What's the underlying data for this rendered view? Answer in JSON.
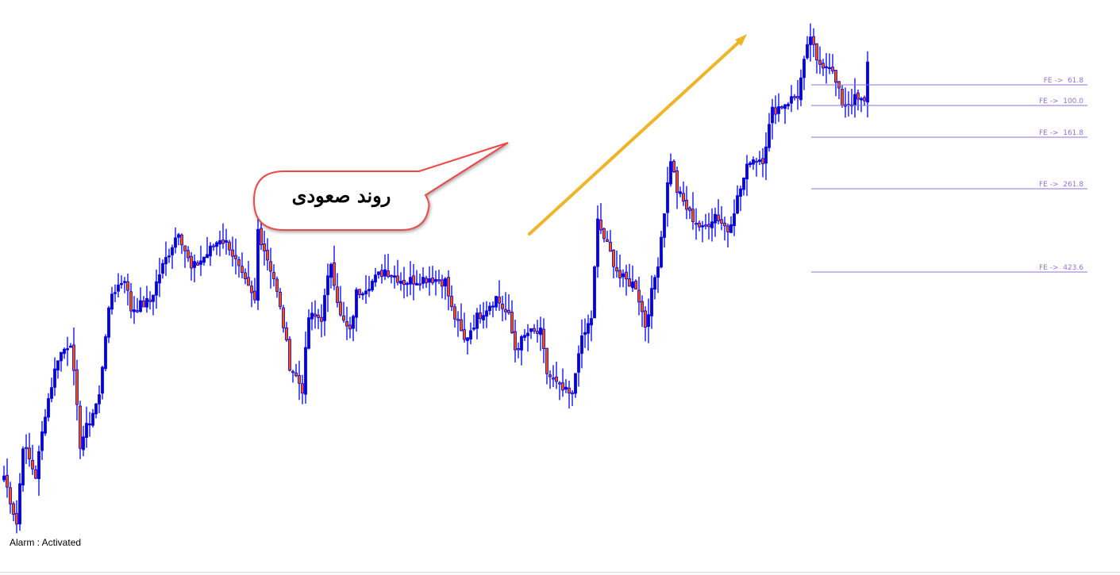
{
  "chart_data": {
    "type": "candlestick",
    "title": "",
    "xlabel": "",
    "ylabel": "",
    "grid": false,
    "colors": {
      "bull_fill": "#0000ee",
      "bear_fill": "#ff4a1a",
      "outline": "#0000ee",
      "fib_line": "#9370db",
      "arrow": "#f0b429",
      "callout_border": "#f04848"
    },
    "close_trend": [
      [
        0,
        100
      ],
      [
        4,
        40
      ],
      [
        6,
        140
      ],
      [
        10,
        100
      ],
      [
        13,
        180
      ],
      [
        17,
        250
      ],
      [
        21,
        270
      ],
      [
        24,
        140
      ],
      [
        26,
        160
      ],
      [
        30,
        200
      ],
      [
        32,
        280
      ],
      [
        34,
        330
      ],
      [
        38,
        350
      ],
      [
        40,
        310
      ],
      [
        46,
        320
      ],
      [
        49,
        355
      ],
      [
        55,
        410
      ],
      [
        59,
        360
      ],
      [
        64,
        380
      ],
      [
        68,
        400
      ],
      [
        71,
        390
      ],
      [
        75,
        350
      ],
      [
        79,
        320
      ],
      [
        80,
        410
      ],
      [
        85,
        350
      ],
      [
        88,
        290
      ],
      [
        90,
        240
      ],
      [
        94,
        210
      ],
      [
        96,
        300
      ],
      [
        100,
        300
      ],
      [
        103,
        370
      ],
      [
        106,
        300
      ],
      [
        109,
        280
      ],
      [
        111,
        330
      ],
      [
        116,
        345
      ],
      [
        120,
        360
      ],
      [
        126,
        345
      ],
      [
        134,
        350
      ],
      [
        139,
        345
      ],
      [
        141,
        310
      ],
      [
        145,
        270
      ],
      [
        149,
        300
      ],
      [
        155,
        325
      ],
      [
        159,
        300
      ],
      [
        161,
        260
      ],
      [
        165,
        280
      ],
      [
        169,
        280
      ],
      [
        171,
        230
      ],
      [
        175,
        210
      ],
      [
        179,
        200
      ],
      [
        181,
        260
      ],
      [
        185,
        300
      ],
      [
        187,
        420
      ],
      [
        191,
        380
      ],
      [
        194,
        350
      ],
      [
        199,
        340
      ],
      [
        202,
        290
      ],
      [
        206,
        370
      ],
      [
        210,
        500
      ],
      [
        212,
        460
      ],
      [
        216,
        430
      ],
      [
        220,
        410
      ],
      [
        224,
        430
      ],
      [
        228,
        410
      ],
      [
        231,
        450
      ],
      [
        235,
        500
      ],
      [
        239,
        500
      ],
      [
        242,
        560
      ],
      [
        246,
        570
      ],
      [
        250,
        580
      ],
      [
        252,
        620
      ],
      [
        254,
        655
      ],
      [
        256,
        620
      ],
      [
        260,
        620
      ],
      [
        264,
        570
      ],
      [
        266,
        570
      ],
      [
        268,
        575
      ],
      [
        271,
        570
      ],
      [
        272,
        625
      ]
    ],
    "fib_expansion": [
      {
        "label": "FE ->  61.8",
        "level": 593
      },
      {
        "label": "FE ->  100.0",
        "level": 567
      },
      {
        "label": "FE ->  161.8",
        "level": 527
      },
      {
        "label": "FE ->  261.8",
        "level": 462
      },
      {
        "label": "FE ->  423.6",
        "level": 357
      }
    ]
  },
  "annotations": {
    "callout_text": "روند صعودی",
    "arrow_icon": "up-right-arrow"
  },
  "status": {
    "alarm": "Alarm : Activated"
  }
}
